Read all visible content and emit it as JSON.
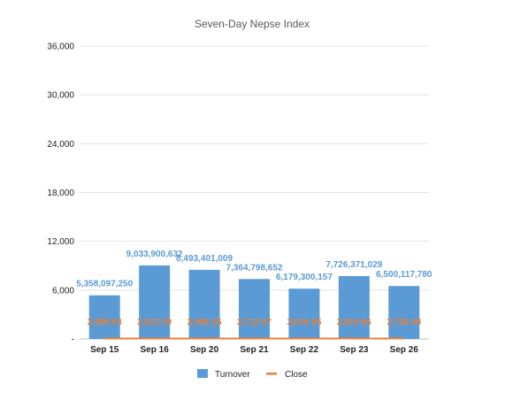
{
  "chart_data": {
    "type": "bar",
    "title": "Seven-Day Nepse Index",
    "categories": [
      "Sep 15",
      "Sep 16",
      "Sep 20",
      "Sep 21",
      "Sep 22",
      "Sep 23",
      "Sep 26"
    ],
    "series": [
      {
        "name": "Turnover",
        "kind": "bar",
        "color": "#5b9bd5",
        "values": [
          5358097250,
          9033900632,
          8493401009,
          7364798652,
          6179300157,
          7726371029,
          6500117780
        ],
        "labels": [
          "5,358,097,250",
          "9,033,900,632",
          "8,493,401,009",
          "7,364,798,652",
          "6,179,300,157",
          "7,726,371,029",
          "6,500,117,780"
        ]
      },
      {
        "name": "Close",
        "kind": "line",
        "color": "#ed7d31",
        "values": [
          2889.03,
          2812.39,
          2698.25,
          2712.07,
          2816.95,
          2819.66,
          2758.48
        ],
        "labels": [
          "2,889.03",
          "2,812.39",
          "2,698.25",
          "2,712.07",
          "2,816.95",
          "2,819.66",
          "2,758.48"
        ]
      }
    ],
    "yaxis": {
      "ticks": [
        "-",
        "6,000",
        "12,000",
        "18,000",
        "24,000",
        "30,000",
        "36,000"
      ],
      "tick_values": [
        0,
        6000,
        12000,
        18000,
        24000,
        30000,
        36000
      ],
      "ylim": [
        0,
        36000
      ]
    },
    "bar_value_scale": 1000000,
    "grid": true,
    "legend_position": "bottom"
  }
}
